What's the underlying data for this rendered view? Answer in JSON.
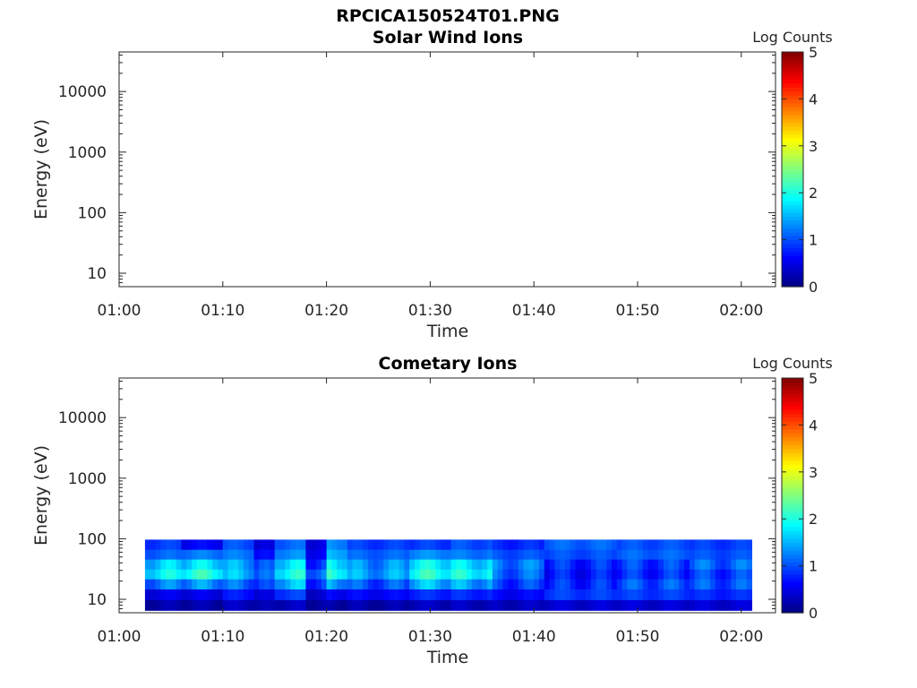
{
  "figure_title": "RPCICA150524T01.PNG",
  "chart_data": [
    {
      "type": "heatmap",
      "title": "Solar Wind Ions",
      "xlabel": "Time",
      "ylabel": "Energy (eV)",
      "x_ticks": [
        "01:00",
        "01:10",
        "01:20",
        "01:30",
        "01:40",
        "01:50",
        "02:00"
      ],
      "y_scale": "log",
      "y_ticks": [
        "10",
        "100",
        "1000",
        "10000"
      ],
      "colorbar_label": "Log Counts",
      "colorbar_ticks": [
        "0",
        "1",
        "2",
        "3",
        "4",
        "5"
      ],
      "colormap": "jet",
      "clim": [
        0,
        5
      ],
      "cells": []
    },
    {
      "type": "heatmap",
      "title": "Cometary Ions",
      "xlabel": "Time",
      "ylabel": "Energy (eV)",
      "x_ticks": [
        "01:00",
        "01:10",
        "01:20",
        "01:30",
        "01:40",
        "01:50",
        "02:00"
      ],
      "y_scale": "log",
      "y_ticks": [
        "10",
        "100",
        "1000",
        "10000"
      ],
      "colorbar_label": "Log Counts",
      "colorbar_ticks": [
        "0",
        "1",
        "2",
        "3",
        "4",
        "5"
      ],
      "colormap": "jet",
      "clim": [
        0,
        5
      ],
      "time_range_min": [
        2.5,
        61
      ],
      "energy_bins_eV": [
        8,
        12,
        18,
        26,
        38,
        55,
        80
      ],
      "profiles": [
        {
          "from_min": 2.5,
          "to_min": 6,
          "levels": [
            0.2,
            0.5,
            1.2,
            1.8,
            1.6,
            1.1,
            0.9
          ]
        },
        {
          "from_min": 6,
          "to_min": 10,
          "levels": [
            0.2,
            0.5,
            1.3,
            2.0,
            1.7,
            1.2,
            0.6
          ]
        },
        {
          "from_min": 10,
          "to_min": 13,
          "levels": [
            0.3,
            0.7,
            1.1,
            1.5,
            1.4,
            1.2,
            1.0
          ]
        },
        {
          "from_min": 13,
          "to_min": 15,
          "levels": [
            0.2,
            0.4,
            0.8,
            1.0,
            0.9,
            0.6,
            0.4
          ]
        },
        {
          "from_min": 15,
          "to_min": 18,
          "levels": [
            0.3,
            0.9,
            1.5,
            1.9,
            1.7,
            1.3,
            1.1
          ]
        },
        {
          "from_min": 18,
          "to_min": 20,
          "levels": [
            0.2,
            0.4,
            0.9,
            1.2,
            0.9,
            0.6,
            0.5
          ]
        },
        {
          "from_min": 20,
          "to_min": 22,
          "levels": [
            0.2,
            0.6,
            1.4,
            2.0,
            1.8,
            1.5,
            1.3
          ]
        },
        {
          "from_min": 22,
          "to_min": 28,
          "levels": [
            0.2,
            0.6,
            1.0,
            1.4,
            1.3,
            1.1,
            0.9
          ]
        },
        {
          "from_min": 28,
          "to_min": 32,
          "levels": [
            0.3,
            0.8,
            1.5,
            2.0,
            1.8,
            1.3,
            0.9
          ]
        },
        {
          "from_min": 32,
          "to_min": 36,
          "levels": [
            0.3,
            0.8,
            1.4,
            1.9,
            1.7,
            1.2,
            1.0
          ]
        },
        {
          "from_min": 36,
          "to_min": 41,
          "levels": [
            0.3,
            0.6,
            0.9,
            1.1,
            1.2,
            1.0,
            0.8
          ]
        },
        {
          "from_min": 41,
          "to_min": 48,
          "levels": [
            0.4,
            0.9,
            0.8,
            0.7,
            0.8,
            1.0,
            1.1
          ]
        },
        {
          "from_min": 48,
          "to_min": 55,
          "levels": [
            0.4,
            0.9,
            1.0,
            0.8,
            0.9,
            1.1,
            1.0
          ]
        },
        {
          "from_min": 55,
          "to_min": 61,
          "levels": [
            0.4,
            0.8,
            1.0,
            0.9,
            1.1,
            1.0,
            0.9
          ]
        }
      ]
    }
  ]
}
